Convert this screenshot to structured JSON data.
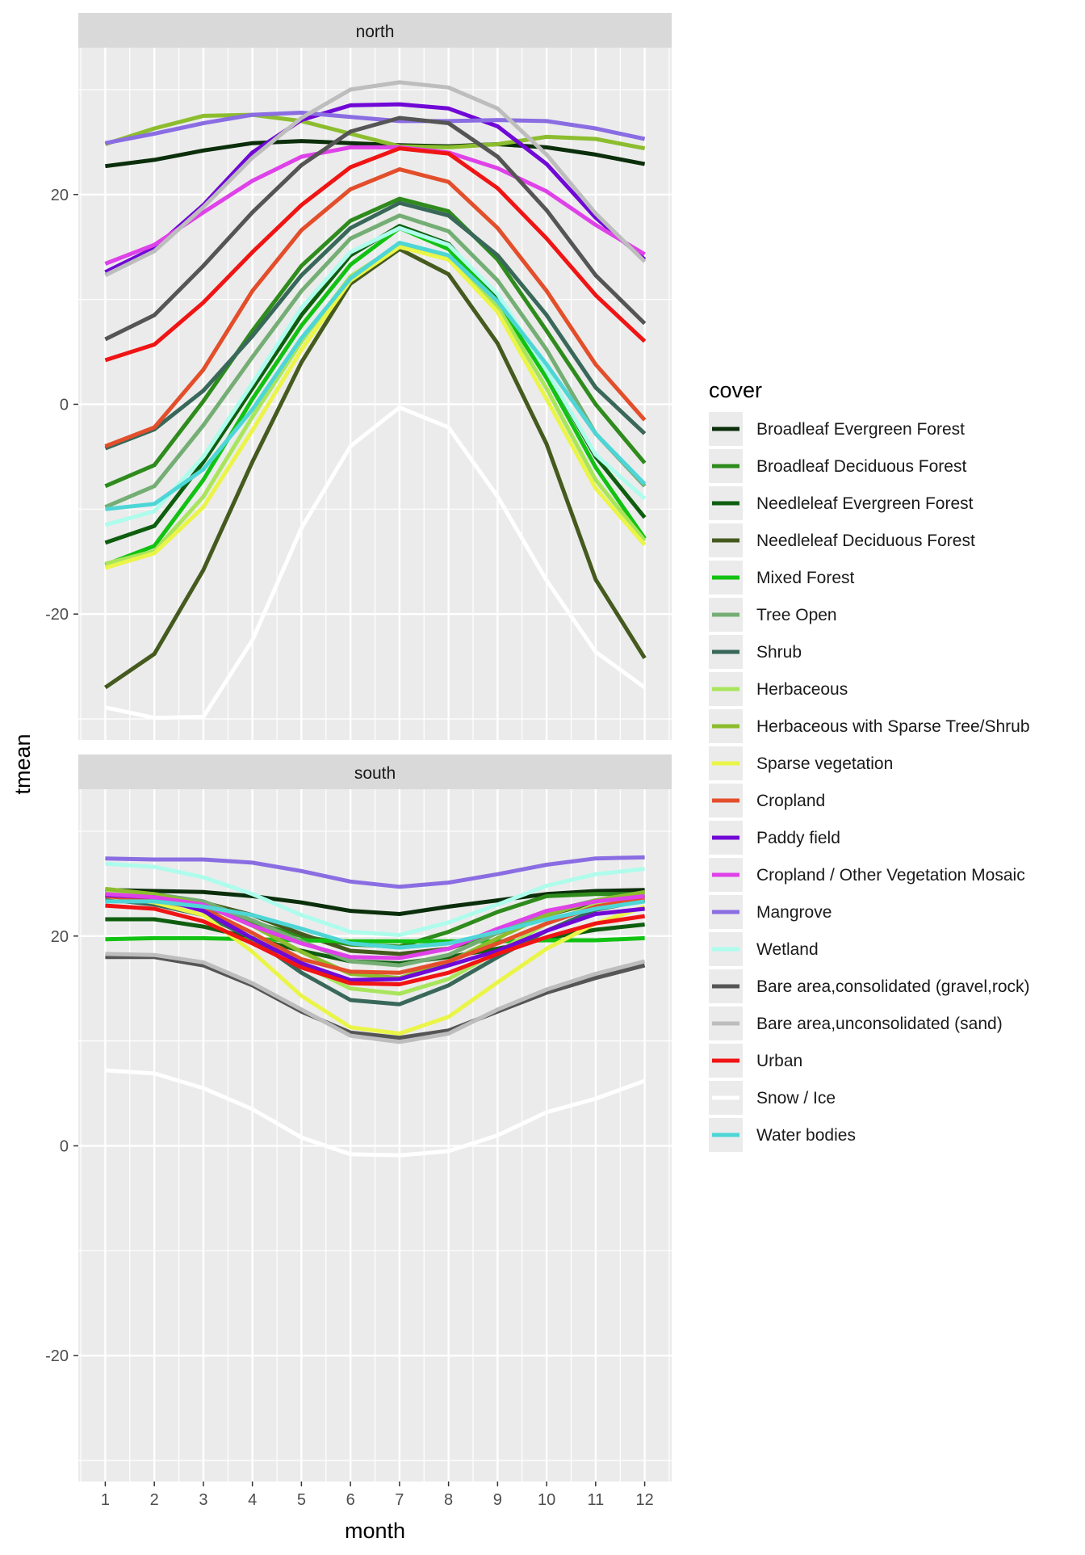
{
  "chart_data": {
    "type": "line",
    "xlabel": "month",
    "ylabel": "tmean",
    "x": [
      1,
      2,
      3,
      4,
      5,
      6,
      7,
      8,
      9,
      10,
      11,
      12
    ],
    "x_ticks": [
      "1",
      "2",
      "3",
      "4",
      "5",
      "6",
      "7",
      "8",
      "9",
      "10",
      "11",
      "12"
    ],
    "y_ticks": [
      -20,
      0,
      20
    ],
    "ylim": [
      -32,
      34
    ],
    "xlim": [
      0.45,
      12.55
    ],
    "grid": true,
    "legend": {
      "title": "cover",
      "position": "right"
    },
    "panels": [
      {
        "title": "north",
        "series": [
          {
            "name": "Broadleaf Evergreen Forest",
            "color": "#0b2e0b",
            "values": [
              22.7,
              23.3,
              24.2,
              24.9,
              25.1,
              24.9,
              24.7,
              24.6,
              24.8,
              24.5,
              23.8,
              22.9
            ]
          },
          {
            "name": "Broadleaf Deciduous Forest",
            "color": "#2e8b1c",
            "values": [
              -7.8,
              -5.8,
              0.3,
              7.0,
              13.2,
              17.5,
              19.6,
              18.4,
              13.8,
              7.0,
              0.0,
              -5.6
            ]
          },
          {
            "name": "Needleleaf Evergreen Forest",
            "color": "#0f5d0f",
            "values": [
              -13.2,
              -11.6,
              -5.5,
              1.5,
              8.5,
              14.2,
              17.0,
              15.3,
              10.0,
              3.2,
              -5.0,
              -10.8
            ]
          },
          {
            "name": "Needleleaf Deciduous Forest",
            "color": "#455a1e",
            "values": [
              -27.0,
              -23.8,
              -15.8,
              -5.5,
              4.0,
              11.5,
              14.8,
              12.4,
              5.8,
              -3.8,
              -16.7,
              -24.2
            ]
          },
          {
            "name": "Mixed Forest",
            "color": "#12c212",
            "values": [
              -15.3,
              -13.5,
              -7.2,
              0.5,
              7.5,
              13.3,
              16.8,
              14.8,
              9.8,
              2.5,
              -6.0,
              -12.8
            ]
          },
          {
            "name": "Tree Open",
            "color": "#74ae74",
            "values": [
              -9.8,
              -7.8,
              -2.0,
              4.5,
              10.8,
              15.8,
              18.0,
              16.5,
              11.8,
              5.2,
              -2.8,
              -7.8
            ]
          },
          {
            "name": "Shrub",
            "color": "#39685a",
            "values": [
              -4.2,
              -2.4,
              1.3,
              6.5,
              12.3,
              16.8,
              19.2,
              18.0,
              14.2,
              8.5,
              1.6,
              -2.8
            ]
          },
          {
            "name": "Herbaceous",
            "color": "#a8e55c",
            "values": [
              -15.2,
              -14.0,
              -8.8,
              -1.2,
              6.0,
              12.2,
              15.2,
              14.0,
              9.3,
              1.5,
              -7.2,
              -13.0
            ]
          },
          {
            "name": "Herbaceous with Sparse Tree/Shrub",
            "color": "#8cbd2e",
            "values": [
              24.8,
              26.3,
              27.5,
              27.6,
              27.0,
              25.8,
              24.6,
              24.5,
              24.8,
              25.5,
              25.3,
              24.4
            ]
          },
          {
            "name": "Sparse vegetation",
            "color": "#eaf548",
            "values": [
              -15.6,
              -14.2,
              -9.8,
              -2.5,
              5.2,
              11.8,
              15.0,
              13.8,
              8.8,
              0.5,
              -8.0,
              -13.4
            ]
          },
          {
            "name": "Cropland",
            "color": "#e34e2b",
            "values": [
              -4.0,
              -2.2,
              3.3,
              10.8,
              16.6,
              20.5,
              22.4,
              21.2,
              16.8,
              10.8,
              3.8,
              -1.5
            ]
          },
          {
            "name": "Paddy field",
            "color": "#7008d6",
            "values": [
              12.6,
              14.9,
              19.0,
              24.0,
              27.1,
              28.5,
              28.6,
              28.2,
              26.5,
              22.9,
              17.8,
              13.8
            ]
          },
          {
            "name": "Cropland / Other Vegetation Mosaic",
            "color": "#de42e8",
            "values": [
              13.4,
              15.2,
              18.3,
              21.3,
              23.6,
              24.5,
              24.5,
              24.0,
              22.5,
              20.3,
              17.1,
              14.3
            ]
          },
          {
            "name": "Mangrove",
            "color": "#8a6de2",
            "values": [
              24.9,
              25.8,
              26.8,
              27.6,
              27.8,
              27.4,
              27.0,
              27.0,
              27.1,
              27.0,
              26.3,
              25.3
            ]
          },
          {
            "name": "Wetland",
            "color": "#aefcec",
            "values": [
              -11.5,
              -10.2,
              -5.0,
              2.0,
              9.2,
              14.5,
              16.8,
              15.2,
              10.5,
              3.2,
              -4.8,
              -9.0
            ]
          },
          {
            "name": "Bare area,consolidated (gravel,rock)",
            "color": "#555555",
            "values": [
              6.2,
              8.5,
              13.2,
              18.3,
              22.8,
              26.0,
              27.3,
              26.8,
              23.6,
              18.5,
              12.3,
              7.7
            ]
          },
          {
            "name": "Bare area,unconsolidated (sand)",
            "color": "#bdbdbd",
            "values": [
              12.3,
              14.6,
              18.8,
              23.5,
              27.3,
              30.0,
              30.7,
              30.2,
              28.2,
              23.8,
              18.2,
              13.6
            ]
          },
          {
            "name": "Urban",
            "color": "#f01414",
            "values": [
              4.2,
              5.7,
              9.7,
              14.5,
              19.0,
              22.6,
              24.4,
              23.9,
              20.6,
              15.8,
              10.4,
              6.0
            ]
          },
          {
            "name": "Snow / Ice",
            "color": "#ffffff",
            "values": [
              -28.9,
              -29.9,
              -29.8,
              -22.5,
              -11.8,
              -4.0,
              -0.3,
              -2.2,
              -8.8,
              -16.8,
              -23.6,
              -27.0
            ]
          },
          {
            "name": "Water bodies",
            "color": "#4ed6d6",
            "values": [
              -10.0,
              -9.5,
              -6.2,
              -0.5,
              6.3,
              12.0,
              15.4,
              14.2,
              9.8,
              3.8,
              -2.8,
              -7.6
            ]
          }
        ]
      },
      {
        "title": "south",
        "series": [
          {
            "name": "Broadleaf Evergreen Forest",
            "color": "#0b2e0b",
            "values": [
              24.4,
              24.3,
              24.2,
              23.8,
              23.2,
              22.4,
              22.1,
              22.8,
              23.4,
              24.0,
              24.3,
              24.4
            ]
          },
          {
            "name": "Broadleaf Deciduous Forest",
            "color": "#2e8b1c",
            "values": [
              24.0,
              23.6,
              22.8,
              21.3,
              20.0,
              19.2,
              19.0,
              20.4,
              22.3,
              23.8,
              24.0,
              24.0
            ]
          },
          {
            "name": "Needleleaf Evergreen Forest",
            "color": "#0f5d0f",
            "values": [
              21.6,
              21.6,
              20.9,
              19.8,
              18.6,
              17.6,
              17.4,
              18.0,
              18.8,
              19.8,
              20.6,
              21.1
            ]
          },
          {
            "name": "Needleleaf Deciduous Forest",
            "color": "#455a1e",
            "values": [
              24.4,
              23.9,
              23.2,
              22.0,
              20.2,
              18.6,
              18.3,
              18.8,
              20.3,
              22.0,
              23.2,
              23.9
            ]
          },
          {
            "name": "Mixed Forest",
            "color": "#12c212",
            "values": [
              19.7,
              19.8,
              19.8,
              19.7,
              19.6,
              19.5,
              19.5,
              19.5,
              19.5,
              19.6,
              19.6,
              19.8
            ]
          },
          {
            "name": "Tree Open",
            "color": "#74ae74",
            "values": [
              24.2,
              24.0,
              23.3,
              21.5,
              19.5,
              17.6,
              17.2,
              18.2,
              20.3,
              22.3,
              23.4,
              23.9
            ]
          },
          {
            "name": "Shrub",
            "color": "#39685a",
            "values": [
              23.5,
              23.0,
              22.0,
              19.8,
              16.5,
              13.9,
              13.5,
              15.3,
              18.0,
              20.5,
              22.5,
              23.4
            ]
          },
          {
            "name": "Herbaceous",
            "color": "#a8e55c",
            "values": [
              24.3,
              23.8,
              22.6,
              20.3,
              17.3,
              15.0,
              14.5,
              15.9,
              18.5,
              21.2,
              23.0,
              23.8
            ]
          },
          {
            "name": "Herbaceous with Sparse Tree/Shrub",
            "color": "#8cbd2e",
            "values": [
              24.5,
              24.0,
              23.0,
              21.0,
              18.5,
              16.4,
              16.0,
              17.5,
              19.8,
              22.0,
              23.4,
              24.2
            ]
          },
          {
            "name": "Sparse vegetation",
            "color": "#eaf548",
            "values": [
              23.8,
              23.2,
              22.0,
              18.5,
              14.3,
              11.3,
              10.7,
              12.3,
              15.6,
              18.8,
              21.2,
              22.8
            ]
          },
          {
            "name": "Cropland",
            "color": "#e34e2b",
            "values": [
              23.8,
              23.4,
              22.6,
              20.3,
              17.8,
              16.6,
              16.5,
              17.6,
              19.3,
              21.2,
              22.8,
              23.6
            ]
          },
          {
            "name": "Paddy field",
            "color": "#7008d6",
            "values": [
              23.9,
              23.7,
              22.4,
              19.8,
              17.4,
              15.8,
              15.9,
              17.2,
              18.6,
              20.5,
              22.1,
              22.6
            ]
          },
          {
            "name": "Cropland / Other Vegetation Mosaic",
            "color": "#de42e8",
            "values": [
              24.0,
              23.7,
              23.0,
              21.0,
              19.3,
              18.0,
              17.9,
              18.8,
              20.7,
              22.4,
              23.3,
              23.8
            ]
          },
          {
            "name": "Mangrove",
            "color": "#8a6de2",
            "values": [
              27.4,
              27.3,
              27.3,
              27.0,
              26.2,
              25.2,
              24.7,
              25.1,
              25.9,
              26.8,
              27.4,
              27.5
            ]
          },
          {
            "name": "Wetland",
            "color": "#aefcec",
            "values": [
              26.9,
              26.6,
              25.6,
              24.0,
              22.0,
              20.4,
              20.1,
              21.3,
              23.0,
              24.8,
              25.9,
              26.4
            ]
          },
          {
            "name": "Bare area,consolidated (gravel,rock)",
            "color": "#555555",
            "values": [
              18.0,
              18.0,
              17.2,
              15.3,
              12.8,
              10.8,
              10.3,
              11.0,
              12.8,
              14.6,
              16.0,
              17.2
            ]
          },
          {
            "name": "Bare area,unconsolidated (sand)",
            "color": "#bdbdbd",
            "values": [
              18.3,
              18.2,
              17.5,
              15.5,
              13.0,
              10.5,
              9.9,
              10.7,
              13.0,
              14.9,
              16.4,
              17.6
            ]
          },
          {
            "name": "Urban",
            "color": "#f01414",
            "values": [
              22.9,
              22.6,
              21.4,
              19.3,
              17.0,
              15.5,
              15.4,
              16.5,
              18.3,
              19.9,
              21.2,
              21.9
            ]
          },
          {
            "name": "Snow / Ice",
            "color": "#ffffff",
            "values": [
              7.2,
              6.9,
              5.5,
              3.5,
              0.8,
              -0.8,
              -0.9,
              -0.5,
              1.0,
              3.2,
              4.5,
              6.2
            ]
          },
          {
            "name": "Water bodies",
            "color": "#4ed6d6",
            "values": [
              23.3,
              23.3,
              22.8,
              22.0,
              20.7,
              19.3,
              18.9,
              19.3,
              20.4,
              21.6,
              22.6,
              23.3
            ]
          }
        ]
      }
    ]
  }
}
